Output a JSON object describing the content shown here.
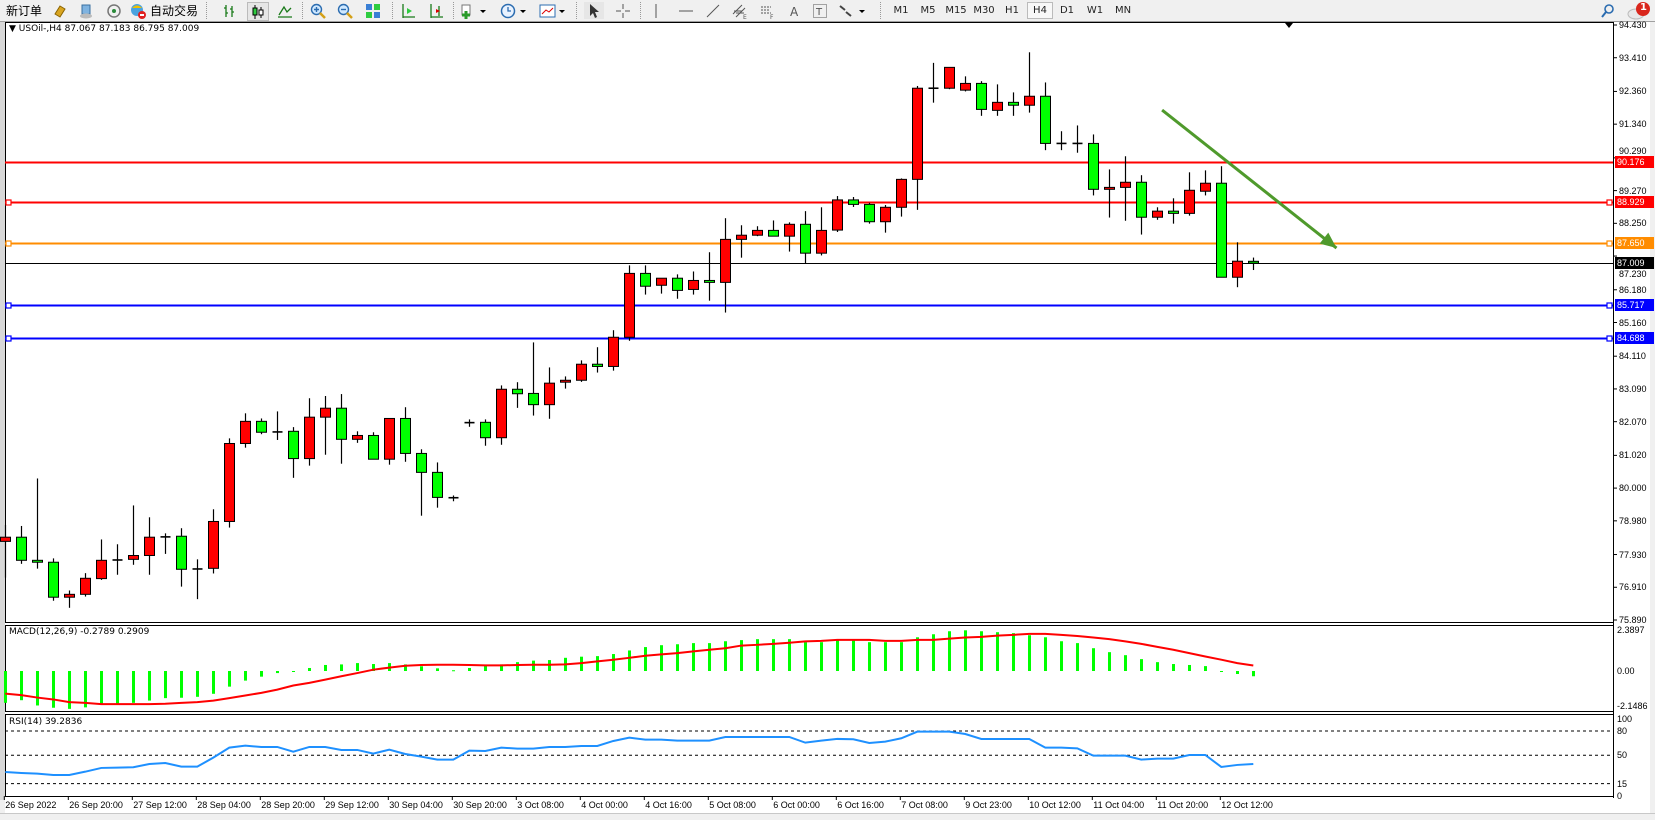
{
  "toolbar": {
    "new_order_label": "新订单",
    "auto_trading_label": "自动交易",
    "timeframes": [
      "M1",
      "M5",
      "M15",
      "M30",
      "H1",
      "H4",
      "D1",
      "W1",
      "MN"
    ],
    "selected_timeframe": "H4",
    "notification_count": "1",
    "icons": [
      "new-order-icon",
      "gold-icon",
      "history-center-icon",
      "signals-icon",
      "auto-trading-icon",
      "bar-chart-icon",
      "candlestick-icon",
      "line-chart-icon",
      "zoom-in-icon",
      "zoom-out-icon",
      "tile-windows-icon",
      "auto-scroll-icon",
      "chart-shift-icon",
      "indicators-icon",
      "periods-icon",
      "templates-icon",
      "cursor-icon",
      "crosshair-icon",
      "vertical-line-icon",
      "horizontal-line-icon",
      "trendline-icon",
      "equidistant-channel-icon",
      "fibonacci-icon",
      "text-icon",
      "text-label-icon",
      "arrows-icon",
      "search-icon",
      "notification-icon"
    ]
  },
  "chart": {
    "header": "USOil-,H4  87.067 87.183 86.795 87.009",
    "macd_header": "MACD(12,26,9) -0.2789 0.2909",
    "rsi_header": "RSI(14) 39.2836"
  },
  "chart_data": {
    "type": "candlestick",
    "symbol": "USOil-",
    "timeframe": "H4",
    "colors": {
      "up": "#ff0000",
      "down": "#00ff00",
      "outline": "#000000",
      "macd_hist": "#00ff00",
      "macd_signal": "#ff0000",
      "rsi": "#1e90ff",
      "arrow": "#4f9a2c"
    },
    "ylim": [
      75.89,
      94.43
    ],
    "y_ticks": [
      "94.430",
      "93.410",
      "92.360",
      "91.340",
      "90.290",
      "89.270",
      "88.250",
      "87.230",
      "86.180",
      "85.160",
      "84.110",
      "83.090",
      "82.070",
      "81.020",
      "80.000",
      "78.980",
      "77.930",
      "76.910",
      "75.890"
    ],
    "x_labels": [
      "26 Sep 2022",
      "26 Sep 20:00",
      "27 Sep 12:00",
      "28 Sep 04:00",
      "28 Sep 20:00",
      "29 Sep 12:00",
      "30 Sep 04:00",
      "30 Sep 20:00",
      "3 Oct 08:00",
      "4 Oct 00:00",
      "4 Oct 16:00",
      "5 Oct 08:00",
      "6 Oct 00:00",
      "6 Oct 16:00",
      "7 Oct 08:00",
      "9 Oct 23:00",
      "10 Oct 12:00",
      "11 Oct 04:00",
      "11 Oct 20:00",
      "12 Oct 12:00"
    ],
    "ohlc": [
      [
        78.34,
        78.85,
        77.21,
        78.47
      ],
      [
        78.47,
        78.82,
        77.64,
        77.75
      ],
      [
        77.75,
        80.3,
        77.49,
        77.69
      ],
      [
        77.69,
        77.81,
        76.49,
        76.6
      ],
      [
        76.6,
        76.81,
        76.27,
        76.69
      ],
      [
        76.69,
        77.35,
        76.62,
        77.19
      ],
      [
        77.18,
        78.4,
        77.14,
        77.75
      ],
      [
        77.76,
        78.25,
        77.3,
        77.76
      ],
      [
        77.78,
        79.46,
        77.61,
        77.9
      ],
      [
        77.9,
        79.09,
        77.3,
        78.47
      ],
      [
        78.48,
        78.59,
        77.95,
        78.48
      ],
      [
        78.5,
        78.75,
        76.93,
        77.47
      ],
      [
        77.48,
        77.78,
        76.54,
        77.48
      ],
      [
        77.5,
        79.34,
        77.34,
        78.96
      ],
      [
        78.96,
        81.55,
        78.77,
        81.39
      ],
      [
        81.39,
        82.33,
        81.26,
        82.08
      ],
      [
        82.08,
        82.17,
        81.68,
        81.74
      ],
      [
        81.75,
        82.39,
        81.5,
        81.75
      ],
      [
        81.77,
        81.9,
        80.32,
        80.92
      ],
      [
        80.92,
        82.8,
        80.7,
        82.21
      ],
      [
        82.21,
        82.87,
        81.04,
        82.49
      ],
      [
        82.49,
        82.93,
        80.76,
        81.52
      ],
      [
        81.52,
        81.77,
        81.41,
        81.64
      ],
      [
        81.64,
        81.74,
        80.9,
        80.9
      ],
      [
        80.9,
        82.17,
        80.73,
        82.17
      ],
      [
        82.17,
        82.52,
        80.82,
        81.08
      ],
      [
        81.08,
        81.21,
        79.14,
        80.49
      ],
      [
        80.49,
        80.8,
        79.39,
        79.71
      ],
      [
        79.7,
        79.77,
        79.59,
        79.7
      ],
      [
        82.04,
        82.14,
        81.91,
        82.04
      ],
      [
        82.05,
        82.14,
        81.32,
        81.57
      ],
      [
        81.57,
        83.2,
        81.35,
        83.08
      ],
      [
        83.08,
        83.3,
        82.5,
        82.94
      ],
      [
        82.95,
        84.54,
        82.26,
        82.6
      ],
      [
        82.6,
        83.76,
        82.16,
        83.27
      ],
      [
        83.3,
        83.48,
        83.1,
        83.36
      ],
      [
        83.36,
        83.98,
        83.31,
        83.86
      ],
      [
        83.86,
        84.39,
        83.6,
        83.79
      ],
      [
        83.79,
        84.92,
        83.66,
        84.7
      ],
      [
        84.7,
        86.94,
        84.59,
        86.69
      ],
      [
        86.69,
        86.94,
        86.03,
        86.29
      ],
      [
        86.32,
        86.54,
        86.06,
        86.54
      ],
      [
        86.54,
        86.66,
        85.9,
        86.16
      ],
      [
        86.19,
        86.75,
        86.03,
        86.47
      ],
      [
        86.47,
        87.35,
        85.84,
        86.41
      ],
      [
        86.41,
        88.41,
        85.47,
        87.75
      ],
      [
        87.75,
        88.19,
        87.18,
        87.88
      ],
      [
        87.88,
        88.16,
        87.85,
        88.03
      ],
      [
        88.03,
        88.34,
        87.85,
        87.85
      ],
      [
        87.85,
        88.28,
        87.37,
        88.22
      ],
      [
        88.22,
        88.63,
        87.0,
        87.32
      ],
      [
        87.32,
        88.75,
        87.25,
        88.03
      ],
      [
        88.04,
        89.1,
        87.98,
        88.98
      ],
      [
        88.98,
        89.07,
        88.76,
        88.84
      ],
      [
        88.84,
        88.89,
        88.24,
        88.3
      ],
      [
        88.3,
        88.82,
        87.96,
        88.75
      ],
      [
        88.75,
        89.65,
        88.46,
        89.62
      ],
      [
        89.62,
        92.53,
        88.67,
        92.46
      ],
      [
        92.46,
        93.25,
        92.01,
        92.46
      ],
      [
        92.46,
        93.11,
        92.43,
        93.11
      ],
      [
        92.4,
        92.83,
        92.36,
        92.61
      ],
      [
        92.61,
        92.68,
        91.6,
        91.8
      ],
      [
        91.77,
        92.58,
        91.6,
        92.02
      ],
      [
        92.02,
        92.33,
        91.6,
        91.93
      ],
      [
        91.93,
        93.58,
        91.7,
        92.21
      ],
      [
        92.21,
        92.64,
        90.53,
        90.74
      ],
      [
        90.74,
        91.12,
        90.53,
        90.74
      ],
      [
        90.74,
        91.3,
        90.45,
        90.74
      ],
      [
        90.74,
        91.02,
        89.12,
        89.31
      ],
      [
        89.31,
        89.93,
        88.43,
        89.37
      ],
      [
        89.37,
        90.34,
        88.33,
        89.53
      ],
      [
        89.53,
        89.75,
        87.9,
        88.44
      ],
      [
        88.44,
        88.75,
        88.36,
        88.63
      ],
      [
        88.63,
        89.03,
        88.24,
        88.56
      ],
      [
        88.56,
        89.84,
        88.49,
        89.28
      ],
      [
        89.25,
        89.9,
        89.12,
        89.5
      ],
      [
        89.5,
        90.03,
        86.57,
        86.57
      ],
      [
        86.57,
        87.66,
        86.26,
        87.07
      ],
      [
        87.067,
        87.183,
        86.795,
        87.009
      ]
    ],
    "levels": [
      {
        "price": 90.176,
        "label": "90.176",
        "color": "#ff0000",
        "marker": false
      },
      {
        "price": 88.929,
        "label": "88.929",
        "color": "#ff0000",
        "marker": true
      },
      {
        "price": 87.65,
        "label": "87.650",
        "color": "#ff8c00",
        "marker": true
      },
      {
        "price": 87.009,
        "label": "87.009",
        "color": "#000000",
        "marker": false,
        "bid": true
      },
      {
        "price": 85.717,
        "label": "85.717",
        "color": "#0000ff",
        "marker": true
      },
      {
        "price": 84.688,
        "label": "84.688",
        "color": "#0000ff",
        "marker": true
      }
    ],
    "arrow": {
      "from": {
        "bar": 73.3,
        "price": 91.78
      },
      "to": {
        "bar": 84.2,
        "price": 87.48
      }
    },
    "macd": {
      "params": "12,26,9",
      "ylim": [
        -2.1486,
        2.3897
      ],
      "y_ticks": [
        "2.3897",
        "0.00",
        "-2.1486"
      ],
      "histogram": [
        -1.69,
        -1.55,
        -1.83,
        -1.95,
        -2.01,
        -1.93,
        -1.78,
        -1.76,
        -1.69,
        -1.57,
        -1.44,
        -1.42,
        -1.37,
        -1.21,
        -0.83,
        -0.51,
        -0.3,
        -0.11,
        -0.05,
        0.16,
        0.32,
        0.35,
        0.42,
        0.37,
        0.42,
        0.35,
        0.25,
        0.14,
        0.04,
        0.16,
        0.28,
        0.35,
        0.47,
        0.55,
        0.58,
        0.7,
        0.76,
        0.79,
        0.9,
        1.09,
        1.27,
        1.37,
        1.42,
        1.48,
        1.48,
        1.58,
        1.64,
        1.69,
        1.69,
        1.69,
        1.53,
        1.53,
        1.64,
        1.64,
        1.53,
        1.53,
        1.53,
        1.79,
        1.95,
        2.11,
        2.16,
        2.11,
        2.06,
        2.01,
        1.9,
        1.79,
        1.58,
        1.48,
        1.21,
        1.0,
        0.84,
        0.63,
        0.47,
        0.37,
        0.32,
        0.26,
        -0.02,
        -0.16,
        -0.2789
      ],
      "signal": [
        -1.2,
        -1.28,
        -1.41,
        -1.51,
        -1.65,
        -1.69,
        -1.76,
        -1.76,
        -1.76,
        -1.76,
        -1.74,
        -1.69,
        -1.65,
        -1.57,
        -1.44,
        -1.3,
        -1.16,
        -0.99,
        -0.77,
        -0.63,
        -0.46,
        -0.28,
        -0.11,
        0.07,
        0.18,
        0.28,
        0.32,
        0.33,
        0.33,
        0.32,
        0.3,
        0.3,
        0.32,
        0.33,
        0.33,
        0.35,
        0.42,
        0.51,
        0.6,
        0.7,
        0.81,
        0.88,
        0.95,
        1.04,
        1.13,
        1.21,
        1.35,
        1.39,
        1.44,
        1.5,
        1.57,
        1.6,
        1.65,
        1.65,
        1.65,
        1.6,
        1.6,
        1.65,
        1.65,
        1.72,
        1.78,
        1.81,
        1.88,
        1.92,
        1.97,
        1.97,
        1.92,
        1.86,
        1.78,
        1.69,
        1.57,
        1.44,
        1.28,
        1.13,
        0.95,
        0.77,
        0.6,
        0.42,
        0.2909
      ]
    },
    "rsi": {
      "period": 14,
      "ylim": [
        0,
        100
      ],
      "levels": [
        80,
        50,
        15
      ],
      "y_ticks": [
        "100",
        "80",
        "50",
        "15",
        "0"
      ],
      "values": [
        29.4,
        28.2,
        27.4,
        25.7,
        25.7,
        29.8,
        34.4,
        34.8,
        35.2,
        39.3,
        40.5,
        36.0,
        36.0,
        47.1,
        59.5,
        61.9,
        60.3,
        60.3,
        54.5,
        60.3,
        60.3,
        56.6,
        56.6,
        52.1,
        57.0,
        51.6,
        48.4,
        44.7,
        44.7,
        55.8,
        55.3,
        59.5,
        58.2,
        58.2,
        60.3,
        60.3,
        61.5,
        61.5,
        67.7,
        71.8,
        69.3,
        69.3,
        68.1,
        68.1,
        68.1,
        72.6,
        72.6,
        72.6,
        72.6,
        72.6,
        65.6,
        68.1,
        70.2,
        69.8,
        65.2,
        66.9,
        71.0,
        79.2,
        79.2,
        79.2,
        76.3,
        70.2,
        70.2,
        70.2,
        70.2,
        59.5,
        59.5,
        58.6,
        49.6,
        49.6,
        49.6,
        44.7,
        45.9,
        45.9,
        50.4,
        50.4,
        35.6,
        38.1,
        39.2836
      ]
    }
  }
}
